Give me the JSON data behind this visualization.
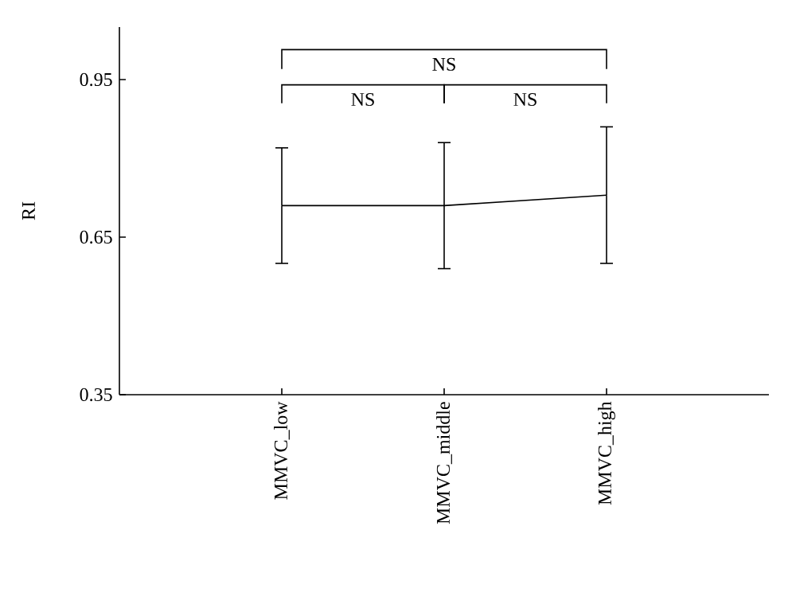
{
  "chart_data": {
    "type": "line",
    "ylabel": "RI",
    "categories": [
      "MMVC_low",
      "MMVC_middle",
      "MMVC_high"
    ],
    "values": [
      0.71,
      0.71,
      0.73
    ],
    "errors": [
      [
        0.6,
        0.82
      ],
      [
        0.59,
        0.83
      ],
      [
        0.6,
        0.86
      ]
    ],
    "color": "#000000",
    "marker": "none",
    "line_style": "solid",
    "grid": false,
    "ylim": [
      0.35,
      1.05
    ],
    "yticks": [
      0.35,
      0.65,
      0.95
    ],
    "annotations": [
      "NS",
      "NS",
      "NS"
    ]
  }
}
